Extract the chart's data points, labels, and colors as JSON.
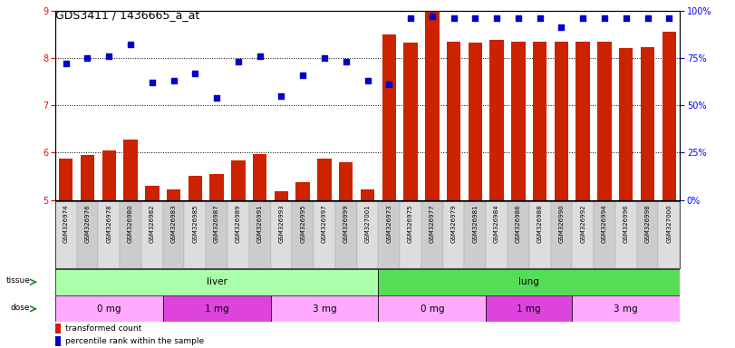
{
  "title": "GDS3411 / 1436665_a_at",
  "samples": [
    "GSM326974",
    "GSM326976",
    "GSM326978",
    "GSM326980",
    "GSM326982",
    "GSM326983",
    "GSM326985",
    "GSM326987",
    "GSM326989",
    "GSM326991",
    "GSM326993",
    "GSM326995",
    "GSM326997",
    "GSM326999",
    "GSM327001",
    "GSM326973",
    "GSM326975",
    "GSM326977",
    "GSM326979",
    "GSM326981",
    "GSM326984",
    "GSM326986",
    "GSM326988",
    "GSM326990",
    "GSM326992",
    "GSM326994",
    "GSM326996",
    "GSM326998",
    "GSM327000"
  ],
  "bar_values": [
    5.88,
    5.95,
    6.05,
    6.28,
    5.3,
    5.22,
    5.52,
    5.55,
    5.83,
    5.97,
    5.18,
    5.38,
    5.87,
    5.8,
    5.22,
    8.5,
    8.32,
    9.0,
    8.35,
    8.33,
    8.38,
    8.35,
    8.35,
    8.35,
    8.35,
    8.35,
    8.2,
    8.22,
    8.55
  ],
  "dot_percentiles": [
    72,
    75,
    76,
    82,
    62,
    63,
    67,
    54,
    73,
    76,
    55,
    66,
    75,
    73,
    63,
    61,
    96,
    97,
    96,
    96,
    96,
    96,
    96,
    91,
    96,
    96,
    96,
    96,
    96
  ],
  "bar_color": "#cc2200",
  "dot_color": "#0000cc",
  "ylim_left": [
    5,
    9
  ],
  "ylim_right": [
    0,
    100
  ],
  "yticks_left": [
    5,
    6,
    7,
    8,
    9
  ],
  "yticks_right": [
    0,
    25,
    50,
    75,
    100
  ],
  "tissue_segments": [
    {
      "label": "liver",
      "start": 0,
      "end": 15,
      "color": "#aaffaa"
    },
    {
      "label": "lung",
      "start": 15,
      "end": 29,
      "color": "#55dd55"
    }
  ],
  "dose_segments": [
    {
      "label": "0 mg",
      "start": 0,
      "end": 5,
      "color": "#ffaaff"
    },
    {
      "label": "1 mg",
      "start": 5,
      "end": 10,
      "color": "#dd44dd"
    },
    {
      "label": "3 mg",
      "start": 10,
      "end": 15,
      "color": "#ffaaff"
    },
    {
      "label": "0 mg",
      "start": 15,
      "end": 20,
      "color": "#ffaaff"
    },
    {
      "label": "1 mg",
      "start": 20,
      "end": 24,
      "color": "#dd44dd"
    },
    {
      "label": "3 mg",
      "start": 24,
      "end": 29,
      "color": "#ffaaff"
    }
  ],
  "legend_items": [
    {
      "label": "transformed count",
      "color": "#cc2200",
      "marker": "square"
    },
    {
      "label": "percentile rank within the sample",
      "color": "#0000cc",
      "marker": "square"
    }
  ],
  "background_color": "#ffffff",
  "xtick_bg": "#d8d8d8"
}
